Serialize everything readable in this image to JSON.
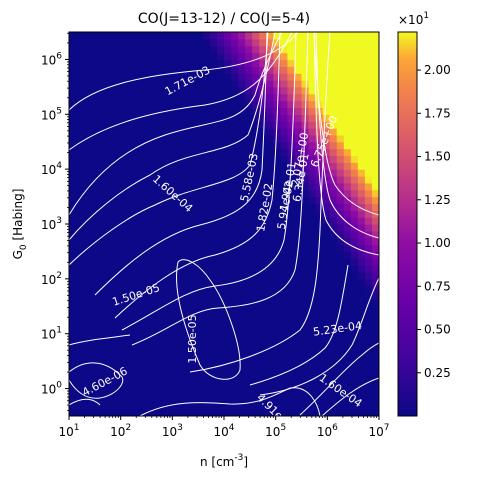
{
  "chart_data": {
    "type": "heatmap",
    "title": "CO(J=13-12) / CO(J=5-4)",
    "xlabel": "n [cm$^{-3}$]",
    "ylabel": "G$_0$ [Habing]",
    "x_scale": "log",
    "y_scale": "log",
    "xlim": [
      10,
      10000000
    ],
    "ylim": [
      0.316,
      3162000
    ],
    "x_ticks": [
      {
        "value": 10,
        "base": "10",
        "exp": "1"
      },
      {
        "value": 100,
        "base": "10",
        "exp": "2"
      },
      {
        "value": 1000,
        "base": "10",
        "exp": "3"
      },
      {
        "value": 10000,
        "base": "10",
        "exp": "4"
      },
      {
        "value": 100000,
        "base": "10",
        "exp": "5"
      },
      {
        "value": 1000000,
        "base": "10",
        "exp": "6"
      },
      {
        "value": 10000000,
        "base": "10",
        "exp": "7"
      }
    ],
    "y_ticks": [
      {
        "value": 1,
        "base": "10",
        "exp": "0"
      },
      {
        "value": 10,
        "base": "10",
        "exp": "1"
      },
      {
        "value": 100,
        "base": "10",
        "exp": "2"
      },
      {
        "value": 1000,
        "base": "10",
        "exp": "3"
      },
      {
        "value": 10000,
        "base": "10",
        "exp": "4"
      },
      {
        "value": 100000,
        "base": "10",
        "exp": "5"
      },
      {
        "value": 1000000,
        "base": "10",
        "exp": "6"
      }
    ],
    "colormap": "plasma",
    "colorbar": {
      "multiplier": "×10",
      "multiplier_exp": "1",
      "range": [
        0.0,
        2.22
      ],
      "ticks": [
        "0.25",
        "0.50",
        "0.75",
        "1.00",
        "1.25",
        "1.50",
        "1.75",
        "2.00"
      ]
    },
    "contour_labels": [
      {
        "text": "1.71e-03",
        "x": 1995,
        "y": 400000,
        "angle": 28
      },
      {
        "text": "1.60e-04",
        "x": 1000,
        "y": 3500,
        "angle": -42
      },
      {
        "text": "5.58e-03",
        "x": 31600,
        "y": 7000,
        "angle": 78
      },
      {
        "text": "2.07e+00",
        "x": 302000,
        "y": 15000,
        "angle": 80
      },
      {
        "text": "6.75e+00",
        "x": 891000,
        "y": 31600,
        "angle": 68
      },
      {
        "text": "6.34e-01",
        "x": 316000,
        "y": 7000,
        "angle": 80
      },
      {
        "text": "1.94e-01",
        "x": 178000,
        "y": 4800,
        "angle": 80
      },
      {
        "text": "5.94e-02",
        "x": 158000,
        "y": 2200,
        "angle": 80
      },
      {
        "text": "1.82e-02",
        "x": 63100,
        "y": 2000,
        "angle": 80
      },
      {
        "text": "1.50e-05",
        "x": 200,
        "y": 50,
        "angle": 18
      },
      {
        "text": "1.50e-05",
        "x": 2510,
        "y": 8,
        "angle": 90
      },
      {
        "text": "5.23e-04",
        "x": 1580000,
        "y": 12,
        "angle": 8
      },
      {
        "text": "4.60e-06",
        "x": 50,
        "y": 1.3,
        "angle": 28
      },
      {
        "text": "4.91e-05",
        "x": 100000,
        "y": 0.35,
        "angle": -45
      },
      {
        "text": "1.60e-04",
        "x": 1780000,
        "y": 0.9,
        "angle": -35
      }
    ]
  }
}
